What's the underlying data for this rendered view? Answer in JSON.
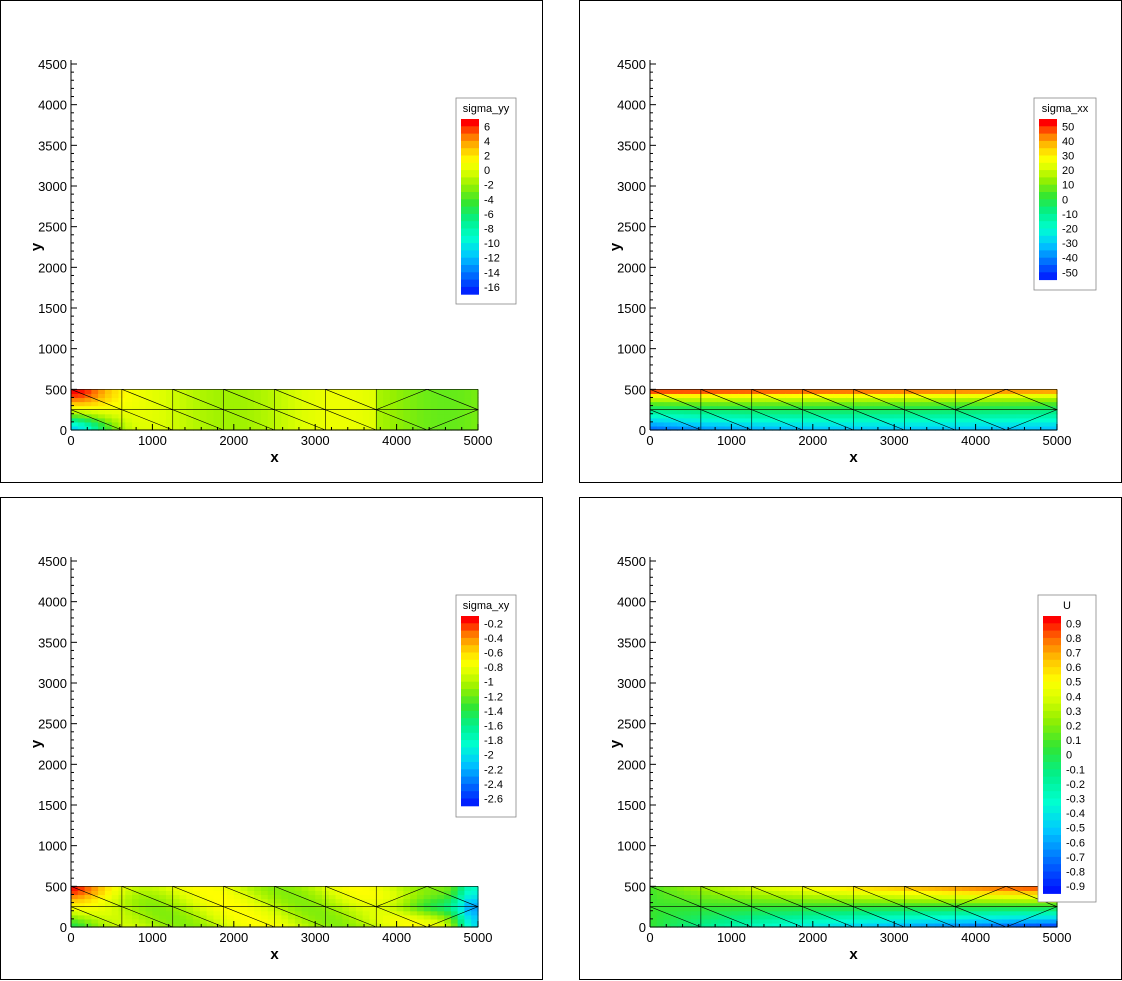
{
  "chart_data": [
    {
      "type": "heatmap",
      "xlabel": "x",
      "ylabel": "y",
      "xlim": [
        0,
        5000
      ],
      "ylim": [
        0,
        4500
      ],
      "xticks": [
        0,
        1000,
        2000,
        3000,
        4000,
        5000
      ],
      "yticks": [
        0,
        500,
        1000,
        1500,
        2000,
        2500,
        3000,
        3500,
        4000,
        4500
      ],
      "domain": {
        "x": [
          0,
          5000
        ],
        "y": [
          0,
          500
        ]
      },
      "legend": {
        "title": "sigma_yy",
        "placement": "right",
        "levels": [
          "6",
          "4",
          "2",
          "0",
          "-2",
          "-4",
          "-6",
          "-8",
          "-10",
          "-12",
          "-14",
          "-16"
        ]
      },
      "field_description": "mostly yellow-green, red at top-left corner, blue at bottom-left"
    },
    {
      "type": "heatmap",
      "xlabel": "x",
      "ylabel": "y",
      "xlim": [
        0,
        5000
      ],
      "ylim": [
        0,
        4500
      ],
      "xticks": [
        0,
        1000,
        2000,
        3000,
        4000,
        5000
      ],
      "yticks": [
        0,
        500,
        1000,
        1500,
        2000,
        2500,
        3000,
        3500,
        4000,
        4500
      ],
      "domain": {
        "x": [
          0,
          5000
        ],
        "y": [
          0,
          500
        ]
      },
      "legend": {
        "title": "sigma_xx",
        "placement": "top-right",
        "levels": [
          "50",
          "40",
          "30",
          "20",
          "10",
          "0",
          "-10",
          "-20",
          "-30",
          "-40",
          "-50"
        ]
      },
      "field_description": "red/yellow at top, green middle, blue at bottom-left"
    },
    {
      "type": "heatmap",
      "xlabel": "x",
      "ylabel": "y",
      "xlim": [
        0,
        5000
      ],
      "ylim": [
        0,
        4500
      ],
      "xticks": [
        0,
        1000,
        2000,
        3000,
        4000,
        5000
      ],
      "yticks": [
        0,
        500,
        1000,
        1500,
        2000,
        2500,
        3000,
        3500,
        4000,
        4500
      ],
      "domain": {
        "x": [
          0,
          5000
        ],
        "y": [
          0,
          500
        ]
      },
      "legend": {
        "title": "sigma_xy",
        "placement": "right",
        "levels": [
          "-0.2",
          "-0.4",
          "-0.6",
          "-0.8",
          "-1",
          "-1.2",
          "-1.4",
          "-1.6",
          "-1.8",
          "-2",
          "-2.2",
          "-2.4",
          "-2.6"
        ]
      },
      "field_description": "yellow/green mix with red spots, blue near right edge"
    },
    {
      "type": "heatmap",
      "xlabel": "x",
      "ylabel": "y",
      "xlim": [
        0,
        5000
      ],
      "ylim": [
        0,
        4500
      ],
      "xticks": [
        0,
        1000,
        2000,
        3000,
        4000,
        5000
      ],
      "yticks": [
        0,
        500,
        1000,
        1500,
        2000,
        2500,
        3000,
        3500,
        4000,
        4500
      ],
      "domain": {
        "x": [
          0,
          5000
        ],
        "y": [
          0,
          500
        ]
      },
      "legend": {
        "title": "U",
        "placement": "right",
        "levels": [
          "0.9",
          "0.8",
          "0.7",
          "0.6",
          "0.5",
          "0.4",
          "0.3",
          "0.2",
          "0.1",
          "0",
          "-0.1",
          "-0.2",
          "-0.3",
          "-0.4",
          "-0.5",
          "-0.6",
          "-0.7",
          "-0.8",
          "-0.9"
        ]
      },
      "field_description": "green on left, gradient red at top to blue at bottom toward the right"
    }
  ],
  "colors": {
    "red": "#ff0000",
    "orange_red": "#ff5a00",
    "orange": "#ffa500",
    "yellow": "#ffff00",
    "yellow_green": "#b4ff00",
    "green": "#32e632",
    "cyan": "#00ffff",
    "blue": "#0000ff"
  }
}
